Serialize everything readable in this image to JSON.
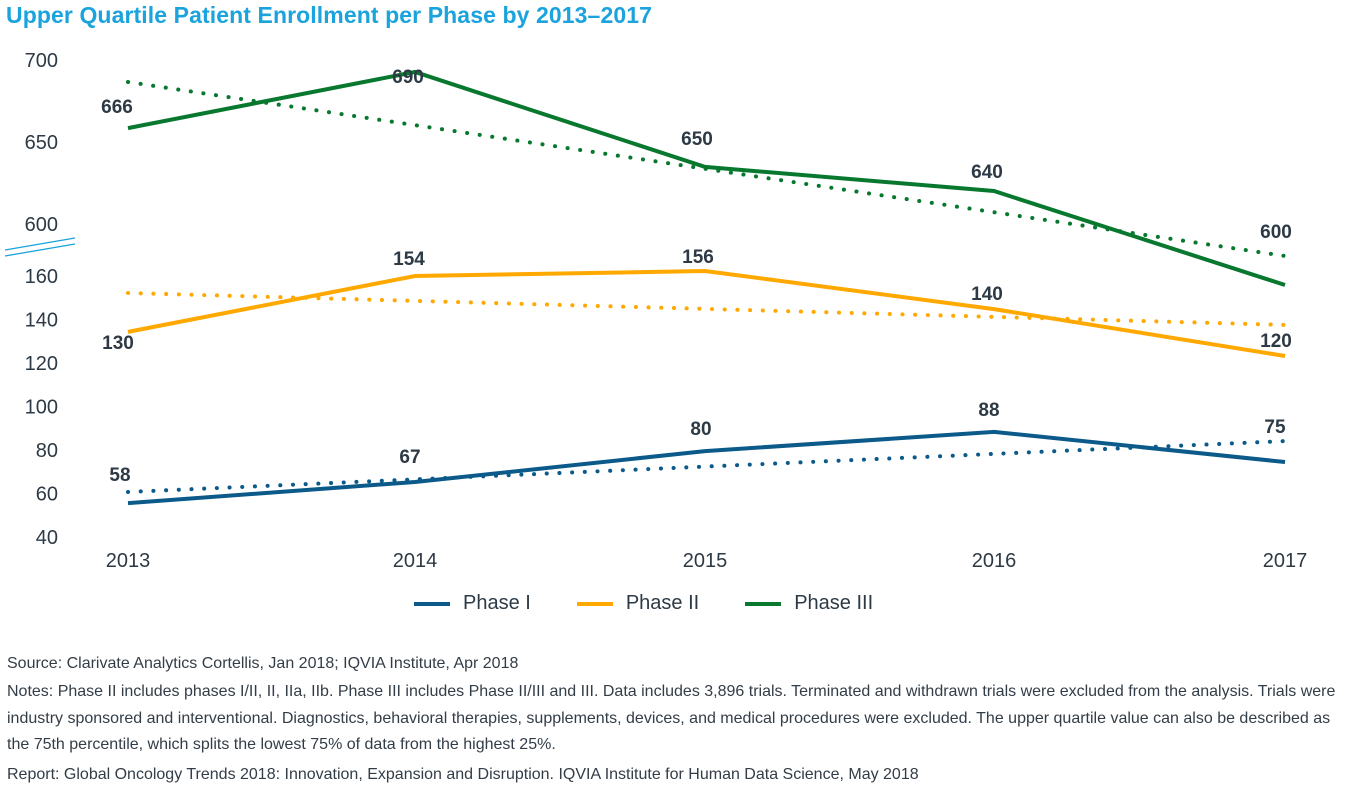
{
  "chart_data": {
    "type": "line",
    "title": "Upper Quartile Patient Enrollment per Phase by 2013–2017",
    "xlabel": "",
    "ylabel": "",
    "categories": [
      "2013",
      "2014",
      "2015",
      "2016",
      "2017"
    ],
    "y_axis": {
      "broken": true,
      "upper_segment": {
        "range": [
          600,
          700
        ],
        "ticks": [
          "700",
          "650",
          "600"
        ]
      },
      "lower_segment": {
        "range": [
          40,
          160
        ],
        "ticks": [
          "160",
          "140",
          "120",
          "100",
          "80",
          "60",
          "40"
        ]
      }
    },
    "grid": false,
    "legend_position": "bottom-center",
    "series": [
      {
        "name": "Phase I",
        "color": "#0b5a8a",
        "segment": "lower",
        "values": [
          58,
          67,
          80,
          88,
          75
        ],
        "plotted": [
          55.6,
          65.3,
          79.5,
          88.3,
          74.5
        ],
        "trendline": {
          "style": "dotted",
          "start": 60.7,
          "end": 84.1
        }
      },
      {
        "name": "Phase II",
        "color": "#ffa800",
        "segment": "lower",
        "values": [
          130,
          154,
          156,
          140,
          120
        ],
        "plotted": [
          134.3,
          160.0,
          162.3,
          144.8,
          123.2
        ],
        "trendline": {
          "style": "dotted",
          "start": 152.2,
          "end": 137.5
        }
      },
      {
        "name": "Phase III",
        "color": "#08782f",
        "segment": "upper",
        "values": [
          666,
          690,
          650,
          640,
          600
        ],
        "plotted": [
          658.5,
          692.7,
          634.8,
          620.1,
          562.8
        ],
        "trendline": {
          "style": "dotted",
          "start": 686.6,
          "end": 580.5
        }
      }
    ],
    "axis_break_color": "#1aa3dc"
  },
  "legend": [
    {
      "label": "Phase I",
      "color": "#0b5a8a"
    },
    {
      "label": "Phase II",
      "color": "#ffa800"
    },
    {
      "label": "Phase III",
      "color": "#08782f"
    }
  ],
  "footer": {
    "source": "Source: Clarivate Analytics Cortellis, Jan 2018; IQVIA Institute, Apr 2018",
    "notes": "Notes: Phase II includes phases I/II, II, IIa, IIb. Phase III includes Phase II/III and III. Data includes 3,896 trials. Terminated and withdrawn trials were excluded from the analysis. Trials were industry sponsored and interventional. Diagnostics, behavioral therapies, supplements, devices, and medical procedures were excluded. The upper quartile value can also be described as the 75th percentile, which splits the lowest 75% of data from the highest 25%.",
    "report": "Report: Global Oncology Trends 2018: Innovation, Expansion and Disruption. IQVIA Institute for Human Data Science, May 2018"
  }
}
